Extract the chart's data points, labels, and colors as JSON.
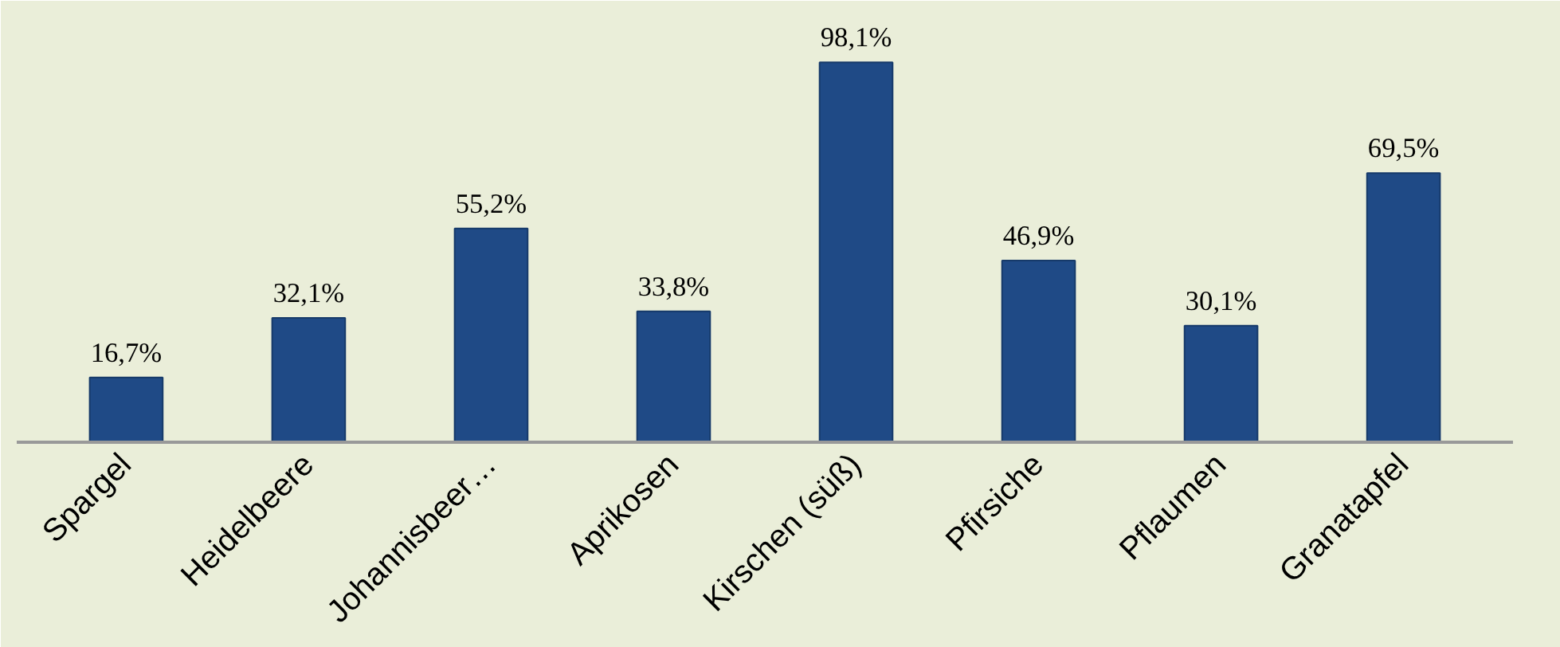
{
  "chart_data": {
    "type": "bar",
    "categories": [
      "Spargel",
      "Heidelbeere",
      "Johannisbeer…",
      "Aprikosen",
      "Kirschen (süß)",
      "Pfirsiche",
      "Pflaumen",
      "Granatapfel"
    ],
    "values": [
      16.7,
      32.1,
      55.2,
      33.8,
      98.1,
      46.9,
      30.1,
      69.5
    ],
    "value_labels": [
      "16,7%",
      "32,1%",
      "55,2%",
      "33,8%",
      "98,1%",
      "46,9%",
      "30,1%",
      "69,5%"
    ],
    "color": "#1f4a86"
  }
}
